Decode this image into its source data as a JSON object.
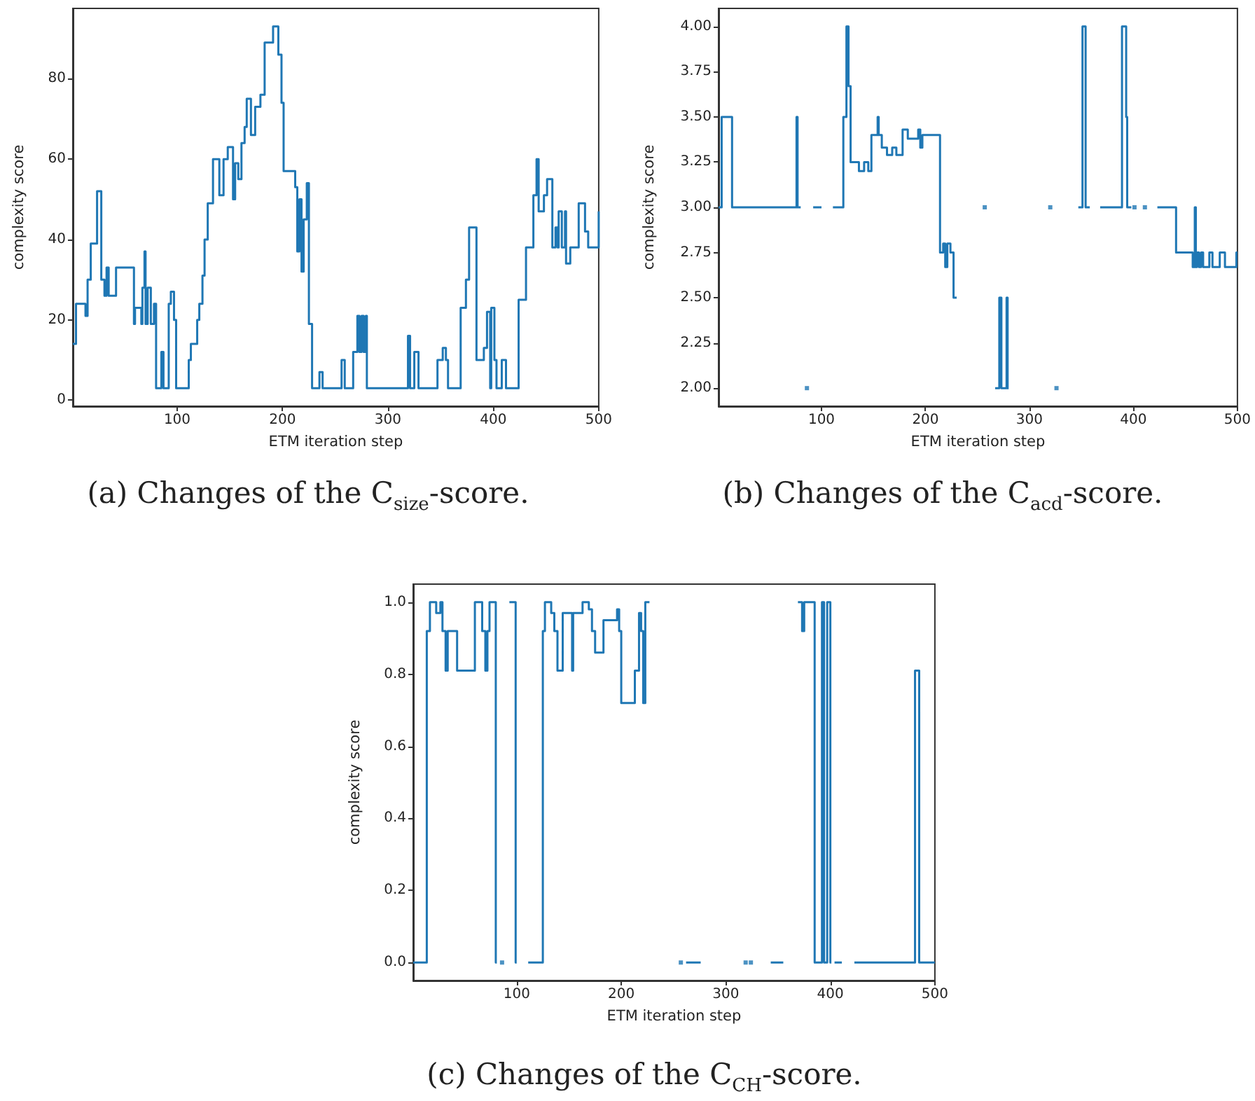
{
  "chart_data": [
    {
      "type": "step",
      "title": "(a) Changes of the C$_{size}$-score.",
      "xlabel": "ETM iteration step",
      "ylabel": "complexity score",
      "xlim": [
        1,
        500
      ],
      "ylim": [
        -1.5,
        97.5
      ],
      "xticks": [
        100,
        200,
        300,
        400,
        500
      ],
      "yticks": [
        0,
        20,
        40,
        60,
        80
      ],
      "color": "#1f77b4",
      "x": [
        1,
        4,
        13,
        15,
        18,
        24,
        28,
        31,
        33,
        35,
        42,
        59,
        60,
        66,
        67,
        69,
        70,
        72,
        75,
        78,
        80,
        85,
        87,
        92,
        94,
        97,
        99,
        111,
        113,
        119,
        121,
        124,
        126,
        129,
        134,
        140,
        144,
        148,
        153,
        155,
        158,
        161,
        164,
        166,
        170,
        174,
        179,
        183,
        191,
        196,
        199,
        201,
        212,
        214,
        216,
        218,
        220,
        223,
        225,
        228,
        235,
        238,
        256,
        259,
        267,
        271,
        273,
        275,
        277,
        279,
        280,
        319,
        321,
        325,
        329,
        347,
        352,
        355,
        357,
        369,
        374,
        377,
        384,
        391,
        394,
        397,
        398,
        401,
        403,
        408,
        412,
        424,
        431,
        438,
        441,
        443,
        448,
        451,
        456,
        459,
        461,
        462,
        465,
        468,
        469,
        473,
        481,
        487,
        490,
        500
      ],
      "values": [
        14,
        24,
        21,
        30,
        39,
        52,
        30,
        26,
        33,
        26,
        33,
        19,
        23,
        19,
        28,
        37,
        19,
        28,
        19,
        24,
        3,
        12,
        3,
        24,
        27,
        20,
        3,
        10,
        14,
        20,
        24,
        31,
        40,
        49,
        60,
        51,
        60,
        63,
        50,
        59,
        55,
        64,
        68,
        75,
        66,
        73,
        76,
        89,
        93,
        86,
        74,
        57,
        53,
        37,
        50,
        32,
        45,
        54,
        19,
        3,
        7,
        3,
        10,
        3,
        12,
        21,
        12,
        21,
        12,
        21,
        3,
        16,
        3,
        12,
        3,
        10,
        13,
        10,
        3,
        23,
        30,
        43,
        10,
        13,
        22,
        3,
        23,
        10,
        3,
        10,
        3,
        25,
        38,
        51,
        60,
        47,
        51,
        55,
        38,
        43,
        38,
        47,
        38,
        47,
        34,
        38,
        49,
        42,
        38,
        47
      ]
    },
    {
      "type": "step",
      "title": "(b) Changes of the C$_{acd}$-score.",
      "xlabel": "ETM iteration step",
      "ylabel": "complexity score",
      "xlim": [
        1,
        500
      ],
      "ylim": [
        1.9,
        4.1
      ],
      "xticks": [
        100,
        200,
        300,
        400,
        500
      ],
      "yticks": [
        {
          "value": 2,
          "label": "2.00"
        },
        {
          "value": 2.25,
          "label": "2.25"
        },
        {
          "value": 2.5,
          "label": "2.50"
        },
        {
          "value": 2.75,
          "label": "2.75"
        },
        {
          "value": 3,
          "label": "3.00"
        },
        {
          "value": 3.25,
          "label": "3.25"
        },
        {
          "value": 3.5,
          "label": "3.50"
        },
        {
          "value": 3.75,
          "label": "3.75"
        },
        {
          "value": 4,
          "label": "4.00"
        }
      ],
      "series": [
        {
          "color": "#1f77b4",
          "x": [
            1,
            4,
            14,
            76,
            77,
            79,
            80,
            92,
            99,
            100,
            111,
            121,
            124,
            126,
            128,
            136,
            141,
            145,
            148,
            154,
            155,
            158,
            163,
            168,
            172,
            178,
            183,
            193,
            195,
            197,
            214,
            217,
            219,
            221,
            224,
            227,
            229,
            230,
            267,
            271,
            273,
            278,
            279,
            280,
            347,
            351,
            354,
            357,
            358,
            368,
            389,
            393,
            394,
            397,
            398,
            423,
            441,
            457,
            459,
            460,
            461,
            463,
            465,
            467,
            473,
            476,
            483,
            488,
            499,
            500
          ],
          "values": [
            3,
            3.5,
            3,
            3.5,
            3,
            3,
            null,
            3,
            3,
            null,
            3,
            3.5,
            4,
            3.67,
            3.25,
            3.2,
            3.25,
            3.2,
            3.4,
            3.5,
            3.4,
            3.33,
            3.29,
            3.33,
            3.29,
            3.43,
            3.38,
            3.43,
            3.33,
            3.4,
            2.75,
            2.8,
            2.67,
            2.8,
            2.75,
            2.5,
            2.5,
            null,
            2,
            2.5,
            2,
            2.5,
            2,
            null,
            3,
            4,
            3,
            3,
            null,
            3,
            4,
            3.5,
            3,
            3,
            null,
            3,
            2.75,
            2.67,
            3,
            2.67,
            2.75,
            2.67,
            2.75,
            2.67,
            2.75,
            2.67,
            2.75,
            2.67,
            2.75,
            2.75
          ]
        },
        {
          "type": "scatter",
          "marker": "square",
          "color": "#1f77b4",
          "x": [
            86,
            257,
            320,
            326,
            401,
            411
          ],
          "values": [
            2,
            3,
            3,
            2,
            3,
            3
          ]
        }
      ]
    },
    {
      "type": "step",
      "title": "(c) Changes of the C$_{CH}$-score.",
      "xlabel": "ETM iteration step",
      "ylabel": "complexity score",
      "xlim": [
        1,
        500
      ],
      "ylim": [
        -0.05,
        1.05
      ],
      "xticks": [
        100,
        200,
        300,
        400,
        500
      ],
      "yticks": [
        {
          "value": 0,
          "label": "0.0"
        },
        {
          "value": 0.2,
          "label": "0.2"
        },
        {
          "value": 0.4,
          "label": "0.4"
        },
        {
          "value": 0.6,
          "label": "0.6"
        },
        {
          "value": 0.8,
          "label": "0.8"
        },
        {
          "value": 1,
          "label": "1.0"
        }
      ],
      "series": [
        {
          "color": "#1f77b4",
          "x": [
            1,
            14,
            17,
            23,
            27,
            29,
            32,
            34,
            43,
            60,
            67,
            70,
            72,
            74,
            80,
            81,
            93,
            99,
            100,
            111,
            125,
            127,
            133,
            136,
            139,
            144,
            153,
            154,
            163,
            169,
            172,
            175,
            183,
            196,
            198,
            200,
            213,
            217,
            219,
            221,
            223,
            226,
            227,
            262,
            275,
            276,
            343,
            354,
            355,
            369,
            373,
            375,
            385,
            392,
            394,
            397,
            400,
            401,
            404,
            410,
            411,
            423,
            481,
            485,
            500
          ],
          "values": [
            0,
            0.92,
            1,
            0.97,
            1,
            0.92,
            0.81,
            0.92,
            0.81,
            1,
            0.92,
            0.81,
            0.92,
            1,
            0,
            null,
            1,
            0,
            null,
            0,
            0.92,
            1,
            0.97,
            0.92,
            0.81,
            0.97,
            0.81,
            0.97,
            1,
            0.98,
            0.92,
            0.86,
            0.95,
            0.98,
            0.92,
            0.72,
            0.81,
            0.97,
            0.92,
            0.72,
            1,
            1,
            null,
            0,
            0,
            null,
            0,
            0,
            null,
            1,
            0.92,
            1,
            0,
            1,
            0,
            1,
            0,
            null,
            0,
            0,
            null,
            0,
            0.81,
            0,
            0
          ]
        },
        {
          "type": "scatter",
          "marker": "square",
          "color": "#1f77b4",
          "x": [
            86,
            257,
            319,
            324
          ],
          "values": [
            0,
            0,
            0,
            0
          ]
        }
      ]
    }
  ]
}
